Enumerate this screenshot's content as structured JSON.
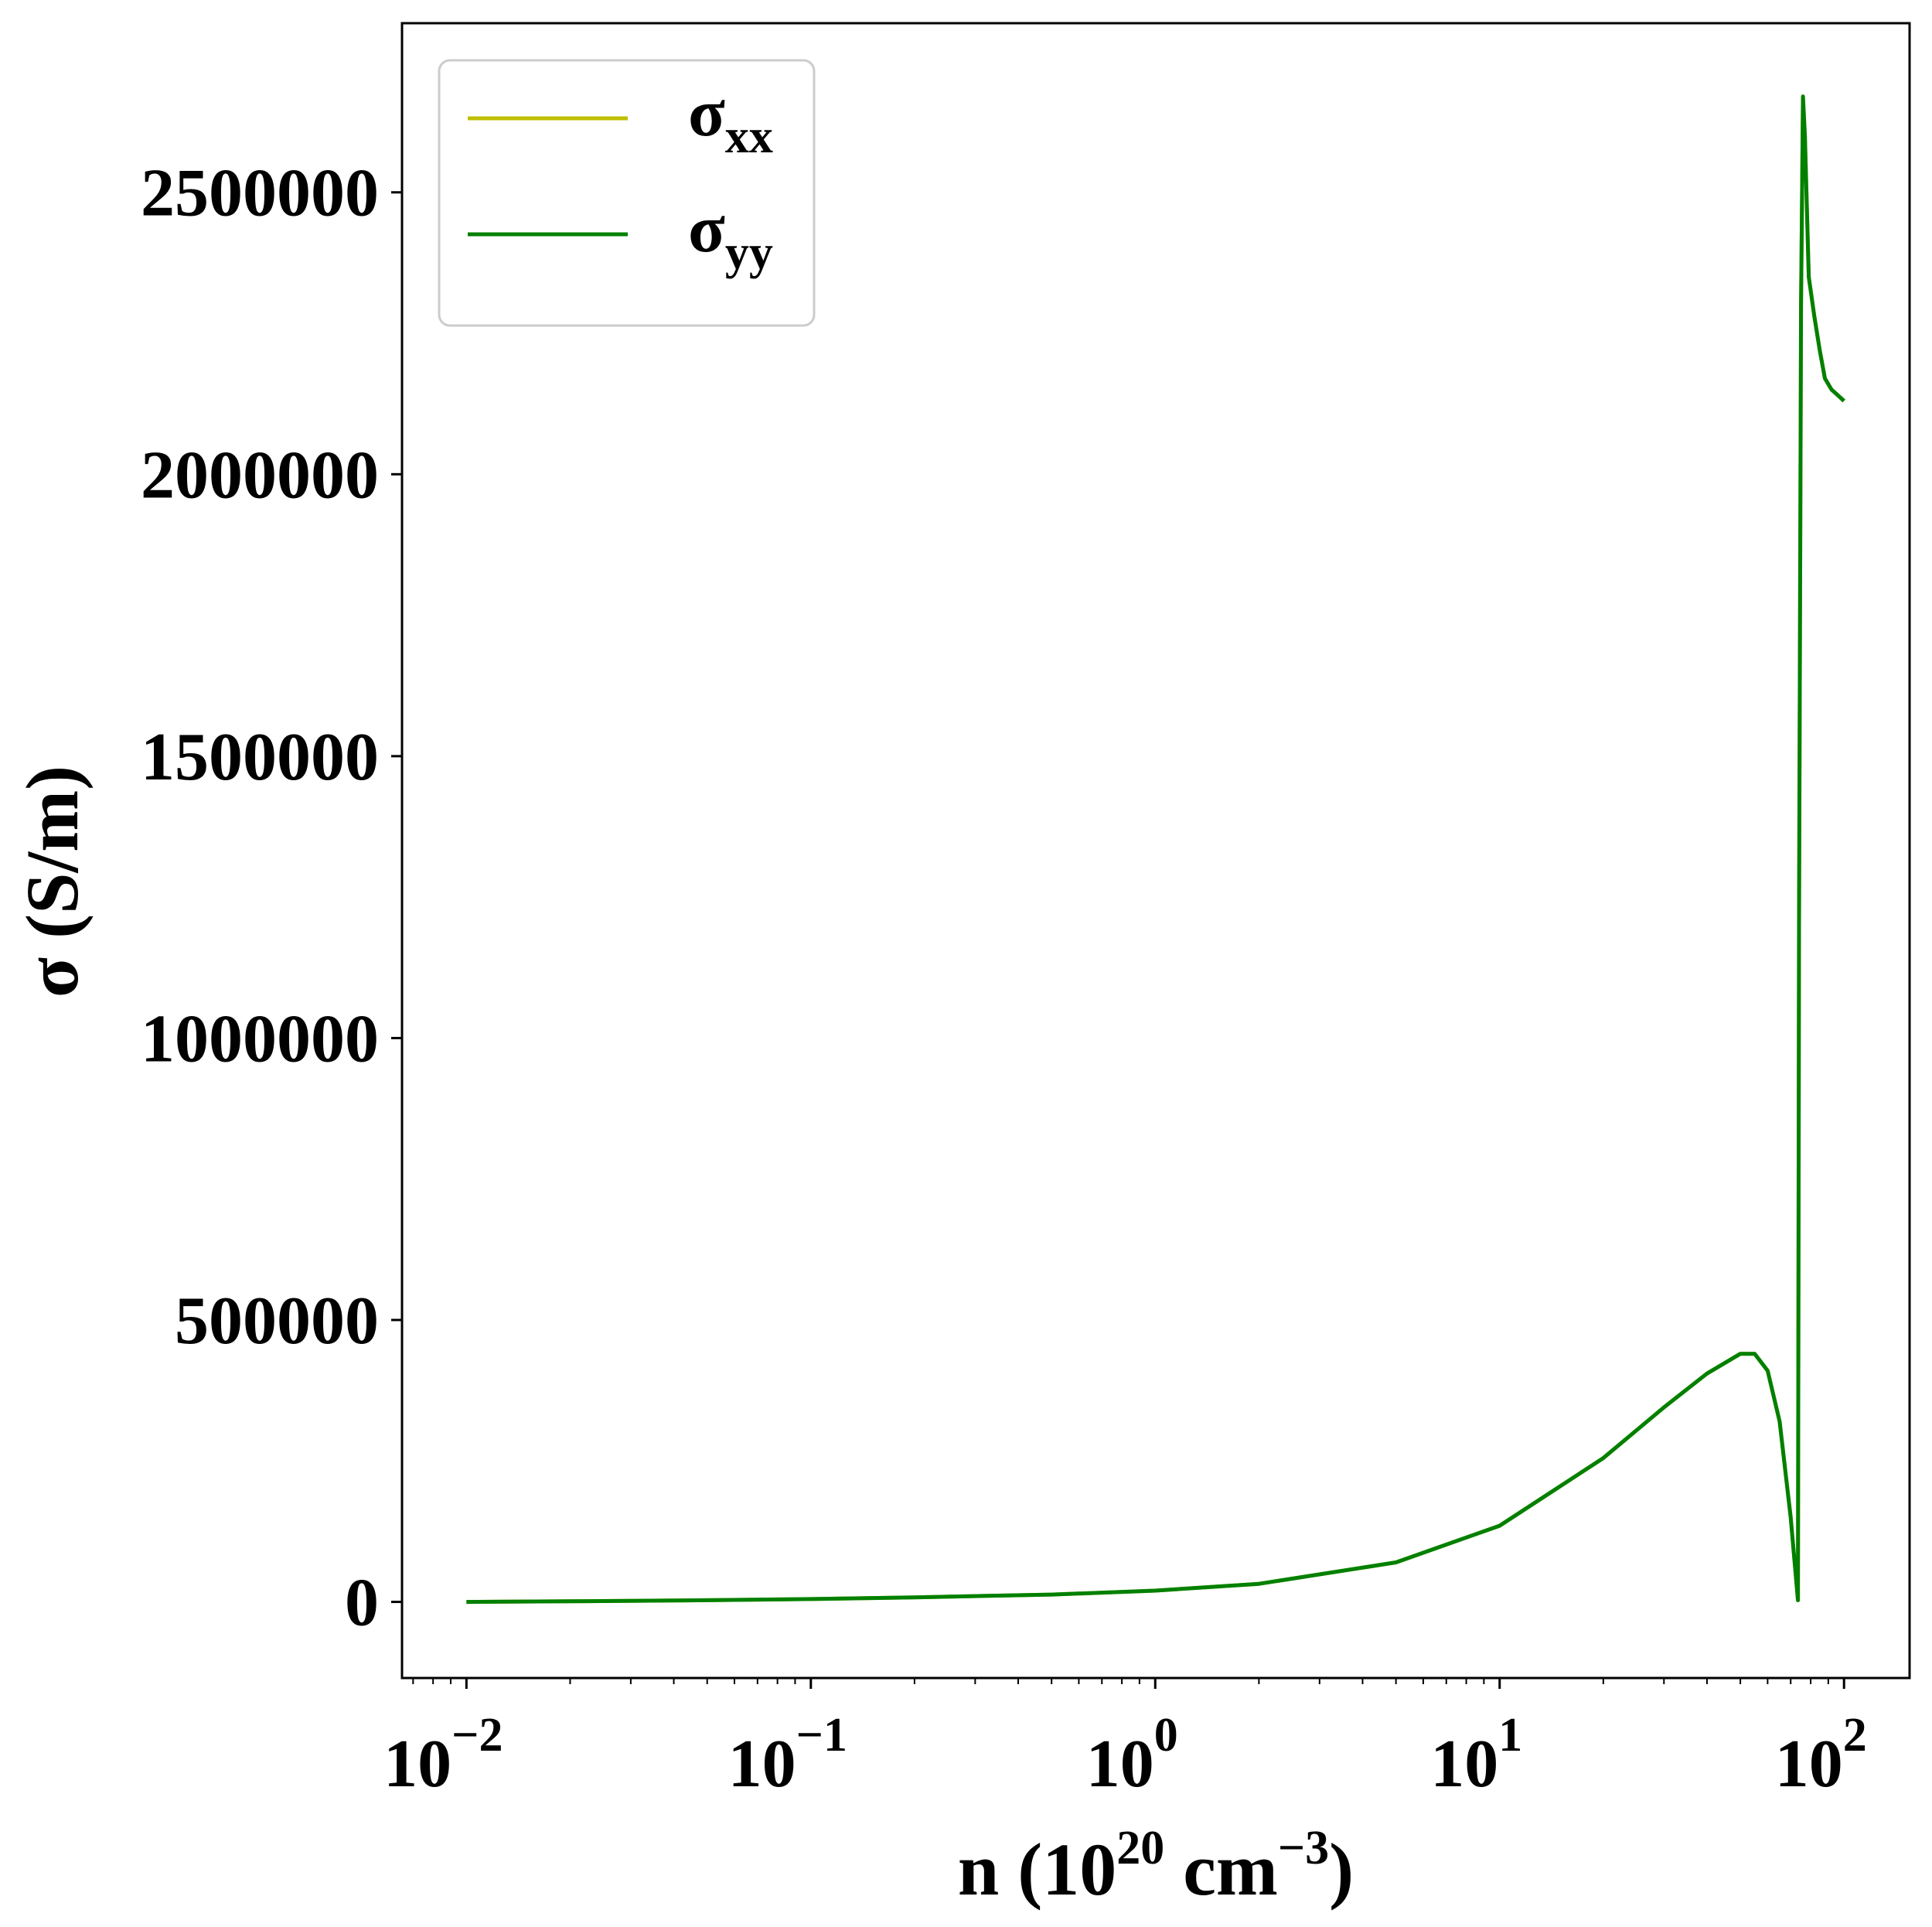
{
  "chart_data": {
    "type": "line",
    "xscale": "log",
    "xlim": [
      0.0065,
      155
    ],
    "ylim": [
      -135000,
      2800000
    ],
    "xlabel": {
      "prefix": "n (10",
      "exp1": "20",
      "mid": " cm",
      "exp2": "−3",
      "suffix": ")"
    },
    "ylabel": "σ (S/m)",
    "yticks": [
      0,
      500000,
      1000000,
      1500000,
      2000000,
      2500000
    ],
    "yticklabels": [
      "0",
      "500000",
      "1000000",
      "1500000",
      "2000000",
      "2500000"
    ],
    "xticks": [
      0.01,
      0.1,
      1,
      10,
      100
    ],
    "xticklabels": [
      {
        "base": "10",
        "exp": "−2"
      },
      {
        "base": "10",
        "exp": "−1"
      },
      {
        "base": "10",
        "exp": "0"
      },
      {
        "base": "10",
        "exp": "1"
      },
      {
        "base": "10",
        "exp": "2"
      }
    ],
    "grid": false,
    "legend_position": "top-left",
    "series": [
      {
        "name": "σxx",
        "symbol": "σ",
        "subscript": "xx",
        "color": "#bfbf00",
        "x": [
          0.01,
          0.02,
          0.05,
          0.1,
          0.2,
          0.5,
          1,
          2,
          5,
          10,
          20,
          30,
          40,
          50,
          55,
          60,
          65,
          70,
          73.5,
          74,
          75,
          76,
          77,
          79,
          82,
          85,
          88,
          92,
          96,
          100
        ],
        "y": [
          0,
          1000,
          3000,
          5000,
          8000,
          13000,
          20000,
          32000,
          70000,
          135000,
          255000,
          345000,
          405000,
          440000,
          440000,
          410000,
          320000,
          150000,
          3000,
          1200000,
          2300000,
          2670000,
          2600000,
          2350000,
          2280000,
          2220000,
          2170000,
          2150000,
          2140000,
          2130000
        ]
      },
      {
        "name": "σyy",
        "symbol": "σ",
        "subscript": "yy",
        "color": "#008000",
        "x": [
          0.01,
          0.02,
          0.05,
          0.1,
          0.2,
          0.5,
          1,
          2,
          5,
          10,
          20,
          30,
          40,
          50,
          55,
          60,
          65,
          70,
          73.5,
          74,
          75,
          76,
          77,
          79,
          82,
          85,
          88,
          92,
          96,
          100
        ],
        "y": [
          0,
          1000,
          3000,
          5000,
          8000,
          13000,
          20000,
          32000,
          70000,
          135000,
          255000,
          345000,
          405000,
          440000,
          440000,
          410000,
          320000,
          150000,
          3000,
          1200000,
          2300000,
          2670000,
          2600000,
          2350000,
          2280000,
          2220000,
          2170000,
          2150000,
          2140000,
          2130000
        ]
      }
    ]
  }
}
